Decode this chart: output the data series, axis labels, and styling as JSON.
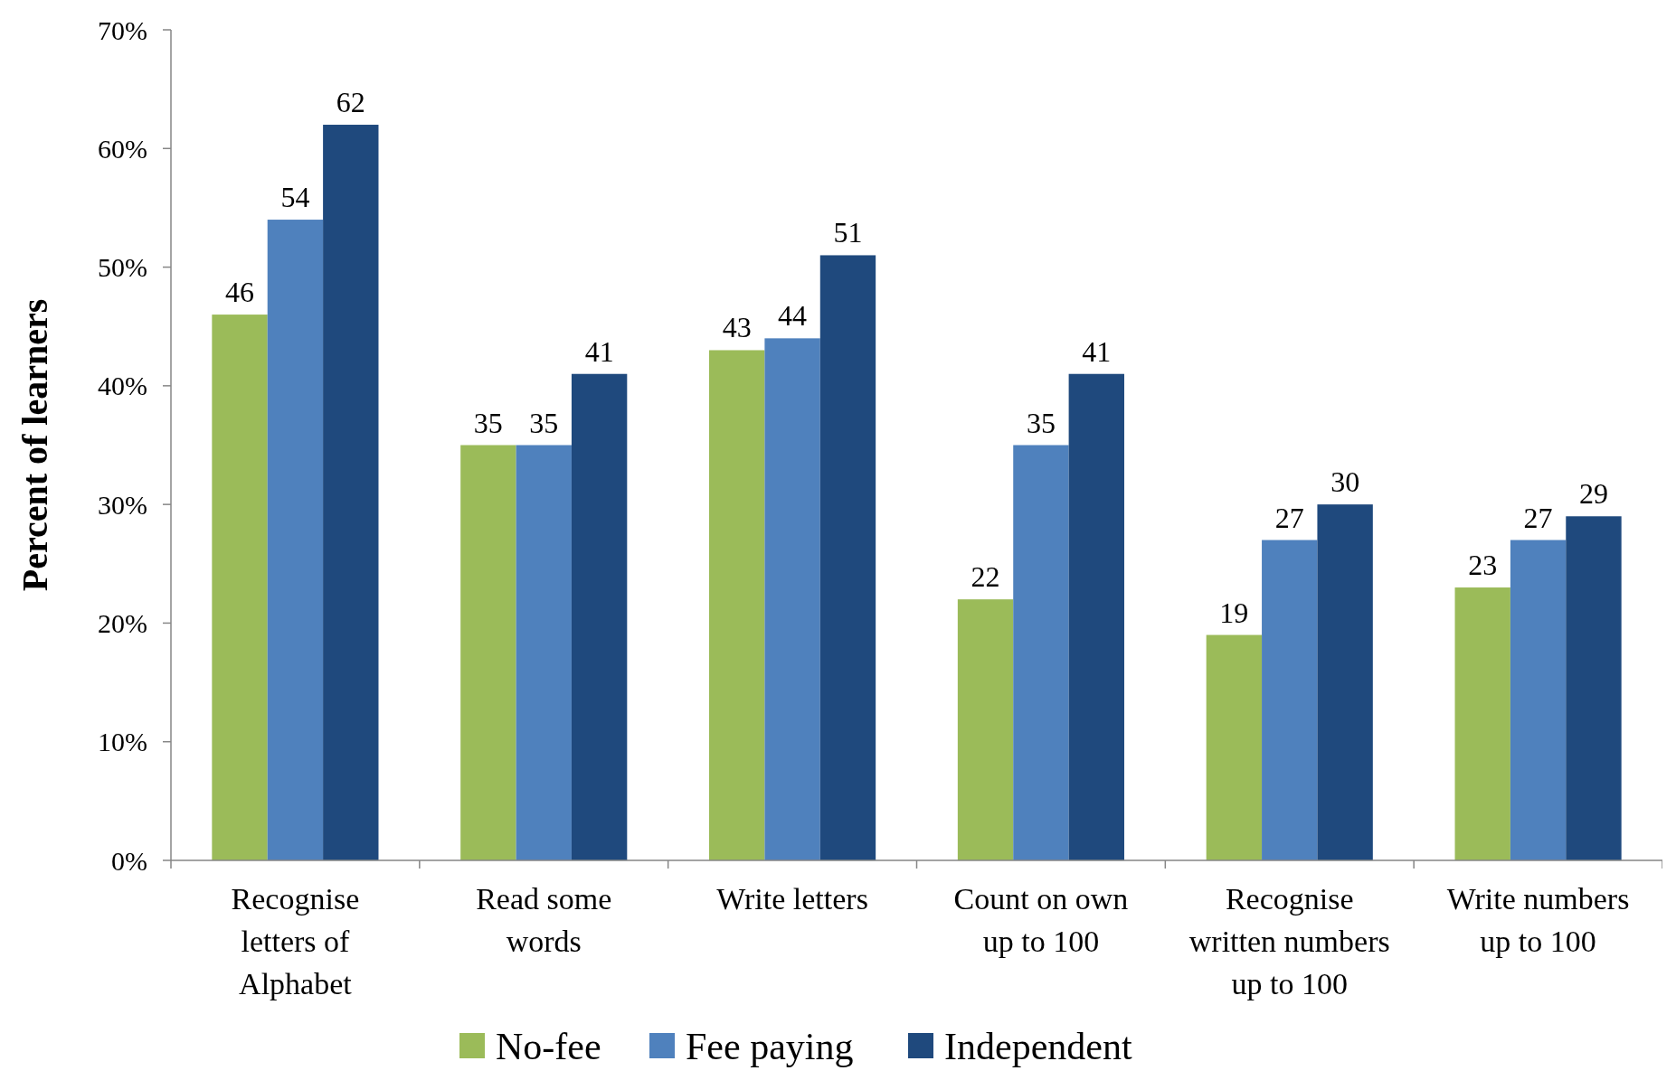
{
  "chart_data": {
    "type": "bar",
    "ylabel": "Percent of learners",
    "categories": [
      "Recognise\nletters of\nAlphabet",
      "Read some\nwords",
      "Write letters",
      "Count on own\nup to 100",
      "Recognise\nwritten numbers\nup to 100",
      "Write numbers\nup to 100"
    ],
    "series": [
      {
        "name": "No-fee",
        "color": "#9bbb59",
        "values": [
          46,
          35,
          43,
          22,
          19,
          23
        ]
      },
      {
        "name": "Fee paying",
        "color": "#4f81bd",
        "values": [
          54,
          35,
          44,
          35,
          27,
          27
        ]
      },
      {
        "name": "Independent",
        "color": "#1f497d",
        "values": [
          62,
          41,
          51,
          41,
          30,
          29
        ]
      }
    ],
    "ylim": [
      0,
      70
    ],
    "yticks": [
      {
        "value": 0,
        "label": "0%"
      },
      {
        "value": 10,
        "label": "10%"
      },
      {
        "value": 20,
        "label": "20%"
      },
      {
        "value": 30,
        "label": "30%"
      },
      {
        "value": 40,
        "label": "40%"
      },
      {
        "value": 50,
        "label": "50%"
      },
      {
        "value": 60,
        "label": "60%"
      },
      {
        "value": 70,
        "label": "70%"
      }
    ],
    "data_labels": true,
    "legend": "bottom",
    "grid": false
  }
}
